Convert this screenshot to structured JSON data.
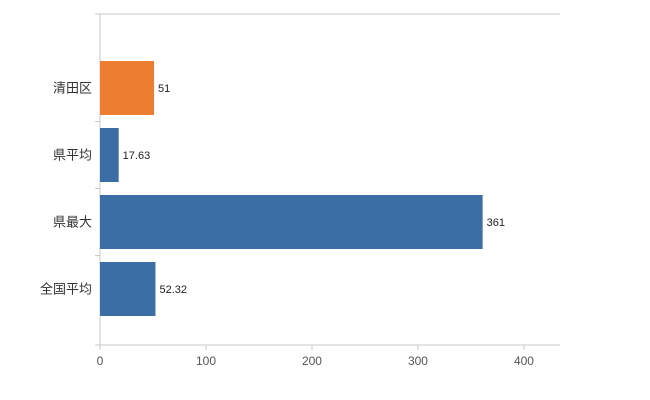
{
  "chart_data": {
    "type": "bar",
    "orientation": "horizontal",
    "title": "",
    "xlabel": "",
    "ylabel": "",
    "categories": [
      "清田区",
      "県平均",
      "県最大",
      "全国平均"
    ],
    "values": [
      51,
      17.63,
      361,
      52.32
    ],
    "value_labels": [
      "51",
      "17.63",
      "361",
      "52.32"
    ],
    "bar_colors": [
      "#ED7D31",
      "#3A6EA5",
      "#3A6EA5",
      "#3A6EA5"
    ],
    "xlim": [
      0,
      434
    ],
    "x_ticks": [
      0,
      100,
      200,
      300,
      400
    ],
    "x_tick_labels": [
      "0",
      "100",
      "200",
      "300",
      "400"
    ],
    "grid": false,
    "legend": "none",
    "colors": {
      "background": "#ffffff",
      "axis_line": "#c9c9c9",
      "tick_mark": "#c9c9c9",
      "x_tick_label": "#555555",
      "category_label": "#333333",
      "value_label": "#222222"
    }
  }
}
